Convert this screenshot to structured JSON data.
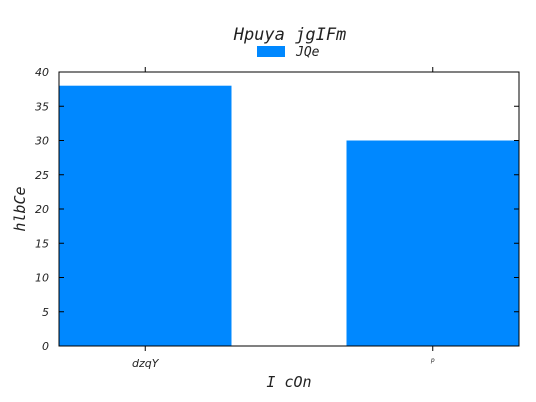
{
  "chart_data": {
    "type": "bar",
    "title": "Hpuya jgIFm",
    "xlabel": "I cOn",
    "ylabel": "hlbCe",
    "categories": [
      "dzqY",
      "p"
    ],
    "series": [
      {
        "name": "JQe",
        "values": [
          38,
          30
        ],
        "color": "#0088ff"
      }
    ],
    "ylim": [
      0,
      40
    ],
    "yticks": [
      0,
      5,
      10,
      15,
      20,
      25,
      30,
      35,
      40
    ],
    "grid": false,
    "legend_position": "top-center"
  }
}
